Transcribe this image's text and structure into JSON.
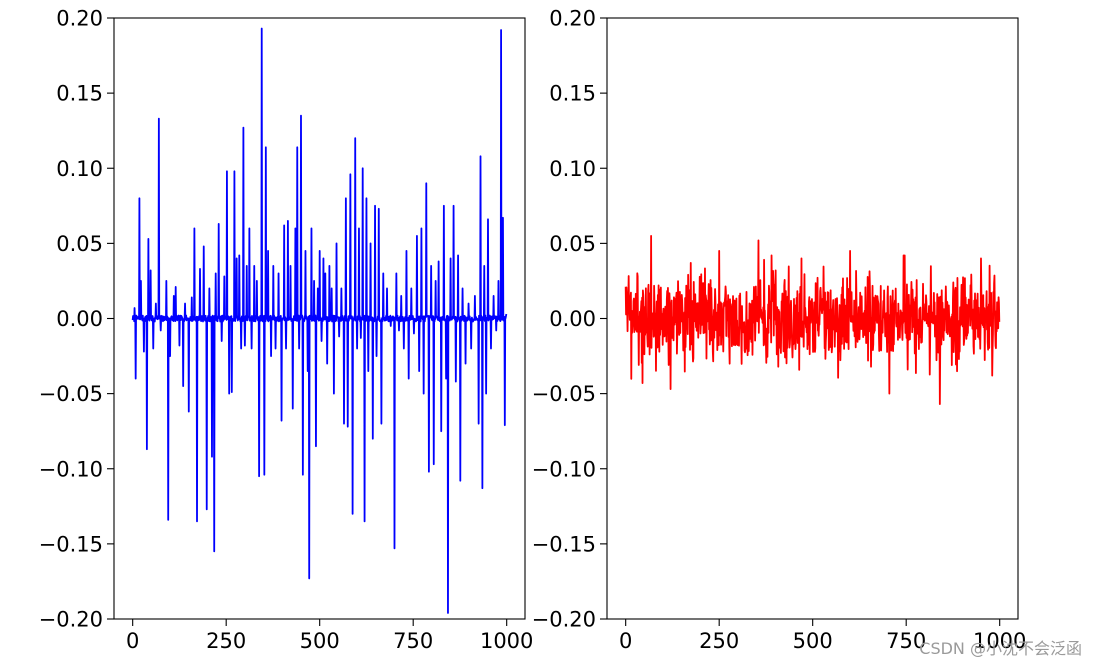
{
  "chart_data": [
    {
      "type": "line",
      "color": "#0000ff",
      "x_range": [
        0,
        999
      ],
      "xlim": [
        -49.95,
        1048.95
      ],
      "ylim": [
        -0.2,
        0.2
      ],
      "xticks": [
        0,
        250,
        500,
        750,
        1000
      ],
      "yticks": [
        -0.2,
        -0.15,
        -0.1,
        -0.05,
        0.0,
        0.05,
        0.1,
        0.15,
        0.2
      ],
      "xtick_labels": [
        "0",
        "250",
        "500",
        "750",
        "1000"
      ],
      "ytick_labels": [
        "−0.20",
        "−0.15",
        "−0.10",
        "−0.05",
        "0.00",
        "0.05",
        "0.10",
        "0.15",
        "0.20"
      ],
      "spikes": [
        [
          5,
          0.007
        ],
        [
          8,
          -0.04
        ],
        [
          18,
          0.08
        ],
        [
          22,
          0.025
        ],
        [
          30,
          -0.022
        ],
        [
          38,
          -0.087
        ],
        [
          42,
          0.053
        ],
        [
          48,
          0.032
        ],
        [
          55,
          -0.02
        ],
        [
          62,
          0.01
        ],
        [
          70,
          0.133
        ],
        [
          75,
          -0.008
        ],
        [
          90,
          0.025
        ],
        [
          95,
          -0.134
        ],
        [
          100,
          -0.025
        ],
        [
          110,
          0.015
        ],
        [
          115,
          0.021
        ],
        [
          125,
          -0.018
        ],
        [
          135,
          -0.045
        ],
        [
          140,
          0.01
        ],
        [
          150,
          -0.062
        ],
        [
          158,
          0.014
        ],
        [
          165,
          0.06
        ],
        [
          172,
          -0.135
        ],
        [
          180,
          0.033
        ],
        [
          190,
          0.048
        ],
        [
          198,
          -0.127
        ],
        [
          205,
          0.02
        ],
        [
          212,
          -0.092
        ],
        [
          218,
          -0.155
        ],
        [
          222,
          0.03
        ],
        [
          230,
          0.063
        ],
        [
          238,
          -0.015
        ],
        [
          245,
          0.028
        ],
        [
          252,
          0.098
        ],
        [
          258,
          -0.05
        ],
        [
          265,
          -0.049
        ],
        [
          272,
          0.098
        ],
        [
          278,
          0.04
        ],
        [
          285,
          0.042
        ],
        [
          290,
          -0.02
        ],
        [
          296,
          0.127
        ],
        [
          300,
          -0.018
        ],
        [
          305,
          0.035
        ],
        [
          312,
          0.06
        ],
        [
          318,
          -0.02
        ],
        [
          325,
          0.035
        ],
        [
          332,
          0.025
        ],
        [
          338,
          -0.105
        ],
        [
          345,
          0.193
        ],
        [
          352,
          -0.104
        ],
        [
          356,
          0.114
        ],
        [
          362,
          0.045
        ],
        [
          370,
          -0.025
        ],
        [
          376,
          0.035
        ],
        [
          382,
          -0.02
        ],
        [
          390,
          0.03
        ],
        [
          398,
          -0.068
        ],
        [
          405,
          0.062
        ],
        [
          410,
          -0.02
        ],
        [
          415,
          0.065
        ],
        [
          422,
          0.035
        ],
        [
          428,
          -0.06
        ],
        [
          435,
          0.06
        ],
        [
          440,
          0.114
        ],
        [
          445,
          -0.02
        ],
        [
          450,
          0.135
        ],
        [
          455,
          -0.104
        ],
        [
          462,
          0.045
        ],
        [
          468,
          -0.035
        ],
        [
          472,
          -0.173
        ],
        [
          478,
          0.06
        ],
        [
          485,
          0.025
        ],
        [
          490,
          -0.085
        ],
        [
          495,
          0.02
        ],
        [
          500,
          0.045
        ],
        [
          505,
          -0.015
        ],
        [
          510,
          0.04
        ],
        [
          515,
          0.03
        ],
        [
          520,
          -0.03
        ],
        [
          526,
          0.035
        ],
        [
          532,
          0.02
        ],
        [
          538,
          -0.05
        ],
        [
          545,
          0.05
        ],
        [
          552,
          -0.012
        ],
        [
          558,
          0.02
        ],
        [
          565,
          -0.07
        ],
        [
          570,
          0.08
        ],
        [
          575,
          -0.072
        ],
        [
          582,
          0.096
        ],
        [
          588,
          -0.13
        ],
        [
          595,
          0.12
        ],
        [
          600,
          -0.02
        ],
        [
          605,
          0.06
        ],
        [
          610,
          -0.013
        ],
        [
          615,
          0.1
        ],
        [
          620,
          -0.135
        ],
        [
          625,
          0.08
        ],
        [
          630,
          -0.035
        ],
        [
          636,
          0.05
        ],
        [
          642,
          -0.08
        ],
        [
          648,
          0.075
        ],
        [
          652,
          -0.025
        ],
        [
          658,
          0.073
        ],
        [
          665,
          -0.07
        ],
        [
          670,
          0.03
        ],
        [
          680,
          0.02
        ],
        [
          690,
          -0.005
        ],
        [
          700,
          -0.153
        ],
        [
          705,
          0.03
        ],
        [
          712,
          -0.008
        ],
        [
          718,
          0.015
        ],
        [
          725,
          -0.02
        ],
        [
          732,
          0.045
        ],
        [
          738,
          -0.04
        ],
        [
          745,
          0.02
        ],
        [
          752,
          -0.01
        ],
        [
          760,
          0.055
        ],
        [
          766,
          -0.035
        ],
        [
          772,
          0.06
        ],
        [
          778,
          -0.05
        ],
        [
          785,
          0.09
        ],
        [
          792,
          -0.102
        ],
        [
          798,
          0.035
        ],
        [
          805,
          -0.097
        ],
        [
          810,
          0.025
        ],
        [
          818,
          0.038
        ],
        [
          825,
          -0.075
        ],
        [
          832,
          0.075
        ],
        [
          838,
          -0.04
        ],
        [
          843,
          -0.196
        ],
        [
          850,
          0.04
        ],
        [
          858,
          0.075
        ],
        [
          864,
          -0.042
        ],
        [
          870,
          0.042
        ],
        [
          876,
          -0.108
        ],
        [
          882,
          0.02
        ],
        [
          890,
          -0.03
        ],
        [
          898,
          0.01
        ],
        [
          905,
          -0.02
        ],
        [
          915,
          0.015
        ],
        [
          925,
          -0.07
        ],
        [
          930,
          0.108
        ],
        [
          935,
          -0.113
        ],
        [
          940,
          0.035
        ],
        [
          945,
          -0.05
        ],
        [
          950,
          0.066
        ],
        [
          958,
          -0.02
        ],
        [
          965,
          0.015
        ],
        [
          972,
          -0.008
        ],
        [
          978,
          0.025
        ],
        [
          985,
          0.192
        ],
        [
          990,
          0.067
        ],
        [
          995,
          -0.071
        ],
        [
          999,
          0.003
        ]
      ],
      "background_noise_amplitude": 0.002
    },
    {
      "type": "line",
      "color": "#ff0000",
      "x_range": [
        0,
        999
      ],
      "xlim": [
        -49.95,
        1048.95
      ],
      "ylim": [
        -0.2,
        0.2
      ],
      "xticks": [
        0,
        250,
        500,
        750,
        1000
      ],
      "yticks": [
        -0.2,
        -0.15,
        -0.1,
        -0.05,
        0.0,
        0.05,
        0.1,
        0.15,
        0.2
      ],
      "xtick_labels": [
        "0",
        "250",
        "500",
        "750",
        "1000"
      ],
      "ytick_labels": [
        "−0.20",
        "−0.15",
        "−0.10",
        "−0.05",
        "0.00",
        "0.05",
        "0.10",
        "0.15",
        "0.20"
      ],
      "noise_std": 0.015,
      "extremes": [
        [
          68,
          0.055
        ],
        [
          355,
          0.052
        ],
        [
          705,
          -0.05
        ],
        [
          840,
          -0.057
        ],
        [
          950,
          0.04
        ],
        [
          45,
          -0.043
        ],
        [
          120,
          -0.047
        ],
        [
          600,
          0.045
        ],
        [
          980,
          -0.038
        ],
        [
          250,
          0.045
        ],
        [
          470,
          0.04
        ]
      ]
    }
  ],
  "watermark": "CSDN @小沈不会泛函"
}
